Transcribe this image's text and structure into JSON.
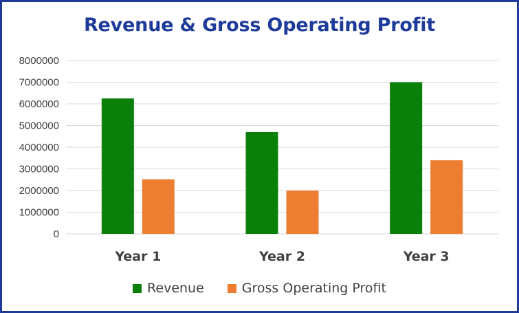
{
  "chart_data": {
    "type": "bar",
    "title": "Revenue & Gross Operating Profit",
    "categories": [
      "Year 1",
      "Year 2",
      "Year 3"
    ],
    "series": [
      {
        "name": "Revenue",
        "values": [
          6250000,
          4700000,
          7000000
        ],
        "color": "#0a7f0a"
      },
      {
        "name": "Gross Operating Profit",
        "values": [
          2520000,
          2000000,
          3400000
        ],
        "color": "#ed7d31"
      }
    ],
    "ylim": [
      0,
      8000000
    ],
    "yticks": [
      0,
      1000000,
      2000000,
      3000000,
      4000000,
      5000000,
      6000000,
      7000000,
      8000000
    ],
    "grid": true,
    "legend": "bottom"
  },
  "colors": {
    "border": "#1f3b9a",
    "title": "#1f3b9a",
    "grid": "#d9d9d9",
    "text": "#404040"
  }
}
